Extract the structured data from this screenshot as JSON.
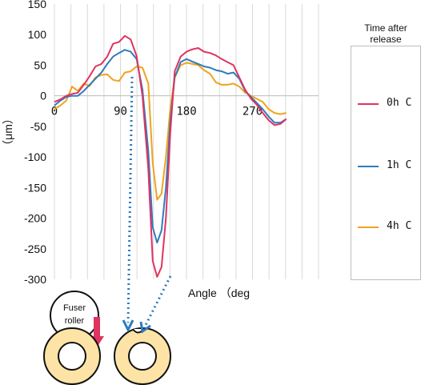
{
  "chart_data": {
    "type": "line",
    "ylabel": "（μm）",
    "xlabel": "Angle （deg",
    "xlim": [
      0,
      360
    ],
    "ylim": [
      -300,
      150
    ],
    "yticks": [
      150,
      100,
      50,
      0,
      -50,
      -100,
      -150,
      -200,
      -250,
      -300
    ],
    "xticks": [
      {
        "value": 0,
        "label": "0"
      },
      {
        "value": 90,
        "label": "90"
      },
      {
        "value": 180,
        "label": "180"
      },
      {
        "value": 270,
        "label": "270"
      }
    ],
    "grid": "vertical",
    "legend": {
      "title": "Time after release",
      "placement": "right"
    },
    "series": [
      {
        "name": "0h C",
        "color": "#e0335f",
        "x": [
          0,
          8,
          16,
          24,
          32,
          40,
          48,
          56,
          64,
          72,
          80,
          88,
          96,
          104,
          112,
          120,
          128,
          134,
          140,
          146,
          152,
          158,
          164,
          172,
          180,
          188,
          196,
          204,
          212,
          220,
          228,
          236,
          244,
          252,
          260,
          268,
          276,
          284,
          292,
          300,
          308,
          316
        ],
        "y": [
          -10,
          -6,
          0,
          3,
          5,
          18,
          32,
          48,
          52,
          64,
          85,
          88,
          98,
          92,
          65,
          0,
          -120,
          -270,
          -296,
          -280,
          -200,
          -60,
          40,
          64,
          72,
          76,
          78,
          72,
          70,
          66,
          60,
          55,
          50,
          30,
          10,
          -5,
          -15,
          -28,
          -40,
          -48,
          -46,
          -38
        ]
      },
      {
        "name": "1h C",
        "color": "#2e7bbd",
        "x": [
          0,
          8,
          16,
          24,
          32,
          40,
          48,
          56,
          64,
          72,
          80,
          88,
          96,
          104,
          112,
          120,
          128,
          134,
          140,
          146,
          152,
          158,
          164,
          172,
          180,
          188,
          196,
          204,
          212,
          220,
          228,
          236,
          244,
          252,
          260,
          268,
          276,
          284,
          292,
          300,
          308,
          316
        ],
        "y": [
          -16,
          -8,
          -2,
          0,
          0,
          8,
          18,
          28,
          38,
          52,
          64,
          70,
          75,
          72,
          60,
          10,
          -90,
          -215,
          -240,
          -220,
          -150,
          -40,
          30,
          55,
          60,
          56,
          52,
          48,
          46,
          42,
          40,
          36,
          38,
          28,
          8,
          -2,
          -12,
          -22,
          -34,
          -44,
          -44,
          -38
        ]
      },
      {
        "name": "4h C",
        "color": "#f0a31e",
        "x": [
          0,
          8,
          16,
          24,
          32,
          40,
          48,
          56,
          64,
          72,
          80,
          88,
          96,
          104,
          112,
          120,
          128,
          134,
          140,
          146,
          152,
          158,
          164,
          172,
          180,
          188,
          196,
          204,
          212,
          220,
          228,
          236,
          244,
          252,
          260,
          268,
          276,
          284,
          292,
          300,
          308,
          316
        ],
        "y": [
          -22,
          -16,
          -8,
          15,
          8,
          20,
          16,
          30,
          34,
          35,
          26,
          24,
          38,
          40,
          48,
          46,
          20,
          -110,
          -170,
          -160,
          -100,
          -20,
          30,
          50,
          54,
          52,
          50,
          42,
          36,
          22,
          18,
          18,
          20,
          15,
          5,
          0,
          -5,
          -10,
          -22,
          -28,
          -30,
          -28
        ]
      }
    ],
    "annotations": {
      "roller_label": [
        "Fuser",
        "roller"
      ]
    }
  }
}
